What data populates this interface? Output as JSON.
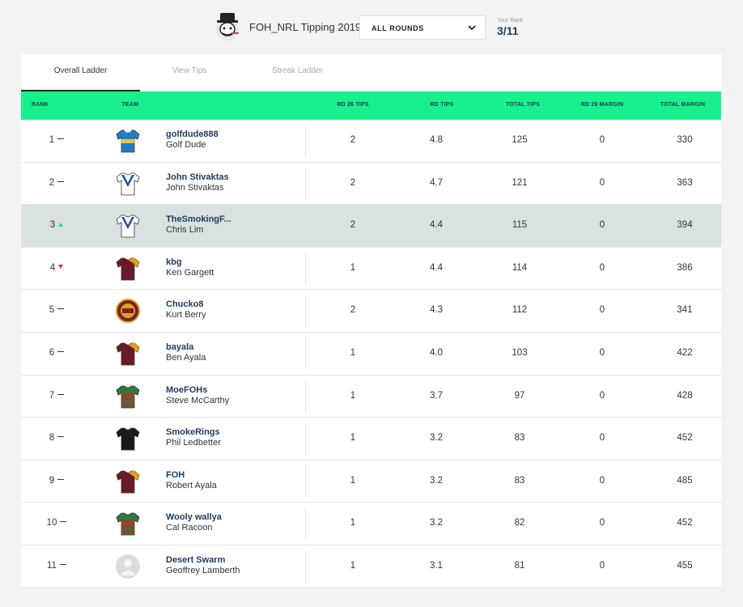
{
  "header": {
    "comp_title": "FOH_NRL Tipping 2019",
    "rounds_label": "ALL ROUNDS",
    "your_rank_label": "Your Rank",
    "your_rank_value": "3/11"
  },
  "tabs": [
    {
      "label": "Overall Ladder",
      "active": true
    },
    {
      "label": "View Tips",
      "active": false
    },
    {
      "label": "Streak Ladder",
      "active": false
    }
  ],
  "columns": {
    "rank": "RANK",
    "team": "TEAM",
    "rd26_tips": "RD 26 TIPS",
    "rd_tips": "RD TIPS",
    "total_tips": "TOTAL TIPS",
    "rd26_margin": "RD 26 MARGIN",
    "total_margin": "TOTAL MARGIN"
  },
  "colors": {
    "accent": "#18f08d",
    "highlight_row": "#d9e1e1",
    "username": "#1d3b5c",
    "up": "#18e08a",
    "down": "#e0282e"
  },
  "rows": [
    {
      "rank": "1",
      "move": "same",
      "team_icon": "jersey-blue-icon",
      "username": "golfdude888",
      "full_name": "Golf Dude",
      "rd26_tips": "2",
      "rd_tips": "4.8",
      "total_tips": "125",
      "rd26_margin": "0",
      "total_margin": "330",
      "highlight": false
    },
    {
      "rank": "2",
      "move": "same",
      "team_icon": "jersey-white-blue-v-icon",
      "username": "John Stivaktas",
      "full_name": "John Stivaktas",
      "rd26_tips": "2",
      "rd_tips": "4.7",
      "total_tips": "121",
      "rd26_margin": "0",
      "total_margin": "363",
      "highlight": false
    },
    {
      "rank": "3",
      "move": "up",
      "team_icon": "jersey-white-blue-v-icon",
      "username": "TheSmokingF...",
      "full_name": "Chris Lim",
      "rd26_tips": "2",
      "rd_tips": "4.4",
      "total_tips": "115",
      "rd26_margin": "0",
      "total_margin": "394",
      "highlight": true
    },
    {
      "rank": "4",
      "move": "down",
      "team_icon": "jersey-maroon-gold-icon",
      "username": "kbg",
      "full_name": "Ken Gargett",
      "rd26_tips": "1",
      "rd_tips": "4.4",
      "total_tips": "114",
      "rd26_margin": "0",
      "total_margin": "386",
      "highlight": false
    },
    {
      "rank": "5",
      "move": "same",
      "team_icon": "qld-maroons-badge-icon",
      "username": "Chucko8",
      "full_name": "Kurt Berry",
      "rd26_tips": "2",
      "rd_tips": "4.3",
      "total_tips": "112",
      "rd26_margin": "0",
      "total_margin": "341",
      "highlight": false
    },
    {
      "rank": "6",
      "move": "same",
      "team_icon": "jersey-maroon-gold-icon",
      "username": "bayala",
      "full_name": "Ben Ayala",
      "rd26_tips": "1",
      "rd_tips": "4.0",
      "total_tips": "103",
      "rd26_margin": "0",
      "total_margin": "422",
      "highlight": false
    },
    {
      "rank": "7",
      "move": "same",
      "team_icon": "jersey-green-red-icon",
      "username": "MoeFOHs",
      "full_name": "Steve McCarthy",
      "rd26_tips": "1",
      "rd_tips": "3.7",
      "total_tips": "97",
      "rd26_margin": "0",
      "total_margin": "428",
      "highlight": false
    },
    {
      "rank": "8",
      "move": "same",
      "team_icon": "jersey-black-icon",
      "username": "SmokeRings",
      "full_name": "Phil Ledbetter",
      "rd26_tips": "1",
      "rd_tips": "3.2",
      "total_tips": "83",
      "rd26_margin": "0",
      "total_margin": "452",
      "highlight": false
    },
    {
      "rank": "9",
      "move": "same",
      "team_icon": "jersey-maroon-gold-icon",
      "username": "FOH",
      "full_name": "Robert Ayala",
      "rd26_tips": "1",
      "rd_tips": "3.2",
      "total_tips": "83",
      "rd26_margin": "0",
      "total_margin": "485",
      "highlight": false
    },
    {
      "rank": "10",
      "move": "same",
      "team_icon": "jersey-green-red-icon",
      "username": "Wooly wallya",
      "full_name": "Cal Racoon",
      "rd26_tips": "1",
      "rd_tips": "3.2",
      "total_tips": "82",
      "rd26_margin": "0",
      "total_margin": "452",
      "highlight": false
    },
    {
      "rank": "11",
      "move": "same",
      "team_icon": "default-avatar-icon",
      "username": "Desert Swarm",
      "full_name": "Geoffrey Lamberth",
      "rd26_tips": "1",
      "rd_tips": "3.1",
      "total_tips": "81",
      "rd26_margin": "0",
      "total_margin": "455",
      "highlight": false
    }
  ]
}
